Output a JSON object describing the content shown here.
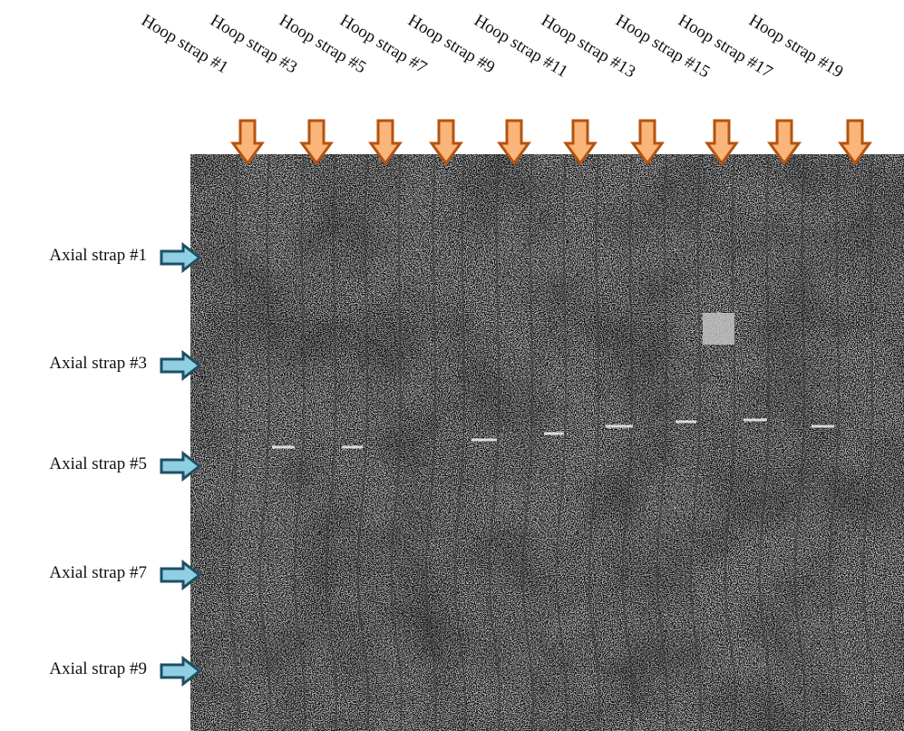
{
  "hoop_straps": [
    {
      "label": "Hoop strap #1"
    },
    {
      "label": "Hoop strap #3"
    },
    {
      "label": "Hoop strap #5"
    },
    {
      "label": "Hoop strap #7"
    },
    {
      "label": "Hoop strap #9"
    },
    {
      "label": "Hoop strap #11"
    },
    {
      "label": "Hoop strap #13"
    },
    {
      "label": "Hoop strap #15"
    },
    {
      "label": "Hoop strap #17"
    },
    {
      "label": "Hoop strap #19"
    }
  ],
  "axial_straps": [
    {
      "label": "Axial strap #1"
    },
    {
      "label": "Axial strap #3"
    },
    {
      "label": "Axial strap #5"
    },
    {
      "label": "Axial strap #7"
    },
    {
      "label": "Axial strap #9"
    }
  ],
  "colors": {
    "hoop_arrow_fill": "#f9b57a",
    "hoop_arrow_stroke": "#b5530f",
    "axial_arrow_fill": "#8fcfe3",
    "axial_arrow_stroke": "#1f4f63",
    "specimen_background": "#8a8a8a"
  },
  "icons": {
    "hoop_marker": "down-arrow-icon",
    "axial_marker": "right-arrow-icon"
  }
}
